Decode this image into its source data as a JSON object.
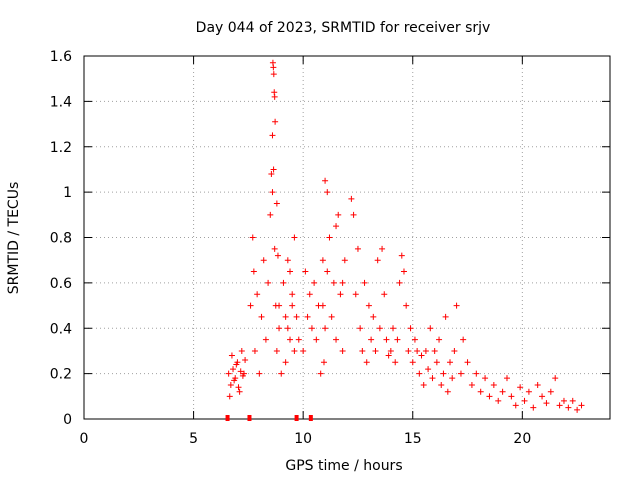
{
  "chart_data": {
    "type": "scatter",
    "title": "Day 044 of 2023, SRMTID for receiver srjv",
    "xlabel": "GPS time / hours",
    "ylabel": "SRMTID / TECUs",
    "xlim": [
      0,
      24
    ],
    "ylim": [
      0,
      1.6
    ],
    "grid": true,
    "marker": "+",
    "color": "#ff0000",
    "x_ticks": [
      0,
      5,
      10,
      15,
      20
    ],
    "x_tick_labels": [
      "0",
      "5",
      "10",
      "15",
      "20"
    ],
    "y_ticks": [
      0,
      0.2,
      0.4,
      0.6,
      0.8,
      1.0,
      1.2,
      1.4,
      1.6
    ],
    "y_tick_labels": [
      "0",
      "0.2",
      "0.4",
      "0.6",
      "0.8",
      "1",
      "1.2",
      "1.4",
      "1.6"
    ],
    "series": [
      {
        "name": "SRMTID",
        "x": [
          6.6,
          6.7,
          6.8,
          6.9,
          7.0,
          7.1,
          7.2,
          7.3,
          6.65,
          6.75,
          6.85,
          6.95,
          7.05,
          7.15,
          7.25,
          7.35,
          7.6,
          7.7,
          7.75,
          7.8,
          7.9,
          8.0,
          8.1,
          8.2,
          8.3,
          8.4,
          8.5,
          8.6,
          8.65,
          8.7,
          8.75,
          8.8,
          8.9,
          9.0,
          9.1,
          9.2,
          9.3,
          9.4,
          9.5,
          9.6,
          8.62,
          8.64,
          8.66,
          8.68,
          8.7,
          8.72,
          8.6,
          8.55,
          8.8,
          8.85,
          8.9,
          9.2,
          9.3,
          9.4,
          9.5,
          9.6,
          9.7,
          9.8,
          10.0,
          10.1,
          10.2,
          10.3,
          10.4,
          10.5,
          10.6,
          10.7,
          10.8,
          10.9,
          11.0,
          11.1,
          11.2,
          11.3,
          11.4,
          11.5,
          11.6,
          11.7,
          11.8,
          11.9,
          10.9,
          10.95,
          11.0,
          11.1,
          11.5,
          11.8,
          12.2,
          12.3,
          12.4,
          12.5,
          12.6,
          12.7,
          12.8,
          12.9,
          13.0,
          13.1,
          13.2,
          13.3,
          13.4,
          13.5,
          13.6,
          13.7,
          13.8,
          13.9,
          14.0,
          14.1,
          14.2,
          14.3,
          14.4,
          14.5,
          14.6,
          14.7,
          14.8,
          14.9,
          15.0,
          15.1,
          15.2,
          15.3,
          15.4,
          15.5,
          15.6,
          15.7,
          15.8,
          15.9,
          16.0,
          16.1,
          16.2,
          16.3,
          16.4,
          16.5,
          16.6,
          16.7,
          16.8,
          16.9,
          17.0,
          17.2,
          17.3,
          17.5,
          17.7,
          17.9,
          18.1,
          18.3,
          18.5,
          18.7,
          18.9,
          19.1,
          19.3,
          19.5,
          19.7,
          19.9,
          20.1,
          20.3,
          20.5,
          20.7,
          20.9,
          21.1,
          21.3,
          21.5,
          21.7,
          21.9,
          22.1,
          22.3,
          22.5,
          22.7
        ],
        "y": [
          0.2,
          0.15,
          0.22,
          0.18,
          0.25,
          0.12,
          0.3,
          0.2,
          0.1,
          0.28,
          0.17,
          0.24,
          0.14,
          0.21,
          0.19,
          0.26,
          0.5,
          0.8,
          0.65,
          0.3,
          0.55,
          0.2,
          0.45,
          0.7,
          0.35,
          0.6,
          0.9,
          1.0,
          1.1,
          0.75,
          0.5,
          0.3,
          0.4,
          0.2,
          0.6,
          0.45,
          0.7,
          0.35,
          0.5,
          0.8,
          1.57,
          1.55,
          1.52,
          1.44,
          1.42,
          1.31,
          1.25,
          1.08,
          0.95,
          0.72,
          0.5,
          0.25,
          0.4,
          0.65,
          0.55,
          0.3,
          0.45,
          0.35,
          0.3,
          0.65,
          0.45,
          0.55,
          0.4,
          0.6,
          0.35,
          0.5,
          0.2,
          0.7,
          1.05,
          1.0,
          0.8,
          0.45,
          0.6,
          0.35,
          0.9,
          0.55,
          0.3,
          0.7,
          0.5,
          0.25,
          0.4,
          0.65,
          0.85,
          0.6,
          0.97,
          0.9,
          0.55,
          0.75,
          0.4,
          0.3,
          0.6,
          0.25,
          0.5,
          0.35,
          0.45,
          0.3,
          0.7,
          0.4,
          0.75,
          0.55,
          0.35,
          0.28,
          0.3,
          0.4,
          0.25,
          0.35,
          0.6,
          0.72,
          0.65,
          0.5,
          0.3,
          0.4,
          0.25,
          0.35,
          0.3,
          0.2,
          0.28,
          0.15,
          0.3,
          0.22,
          0.4,
          0.18,
          0.3,
          0.25,
          0.35,
          0.15,
          0.2,
          0.45,
          0.12,
          0.25,
          0.18,
          0.3,
          0.5,
          0.2,
          0.35,
          0.25,
          0.15,
          0.2,
          0.12,
          0.18,
          0.1,
          0.15,
          0.08,
          0.12,
          0.18,
          0.1,
          0.06,
          0.14,
          0.08,
          0.12,
          0.05,
          0.15,
          0.1,
          0.07,
          0.12,
          0.18,
          0.06,
          0.08,
          0.05,
          0.08,
          0.04,
          0.06
        ]
      }
    ],
    "rug_x": [
      6.55,
      7.55,
      9.7,
      10.35
    ]
  }
}
